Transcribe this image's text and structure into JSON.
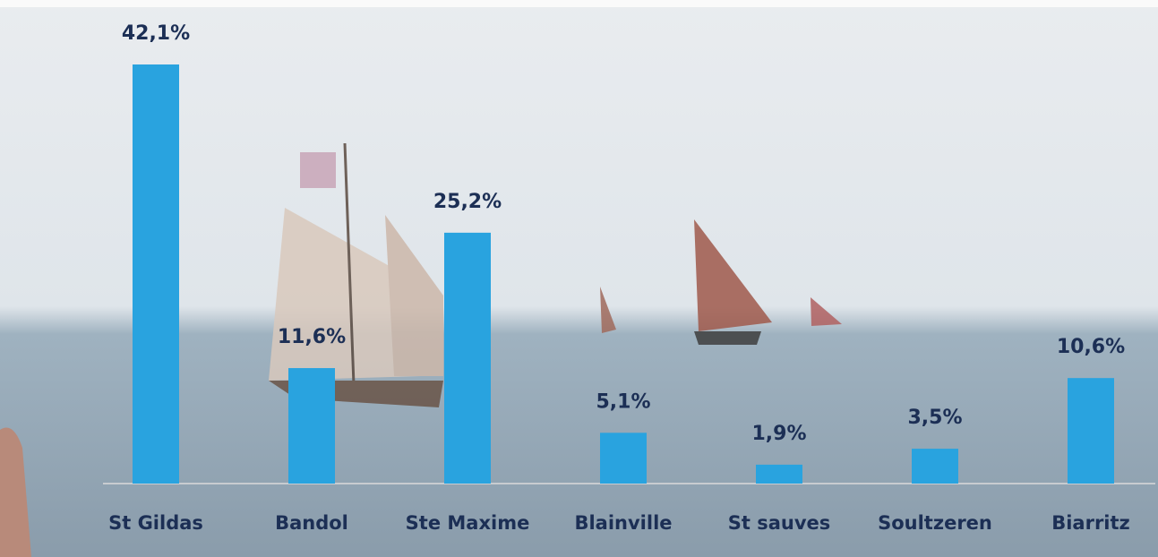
{
  "chart_data": {
    "type": "bar",
    "categories": [
      "St Gildas",
      "Bandol",
      "Ste Maxime",
      "Blainville",
      "St sauves",
      "Soultzeren",
      "Biarritz"
    ],
    "values": [
      42.1,
      11.6,
      25.2,
      5.1,
      1.9,
      3.5,
      10.6
    ],
    "value_labels": [
      "42,1%",
      "11,6%",
      "25,2%",
      "5,1%",
      "1,9%",
      "3,5%",
      "10,6%"
    ],
    "color": "#29a3df"
  }
}
